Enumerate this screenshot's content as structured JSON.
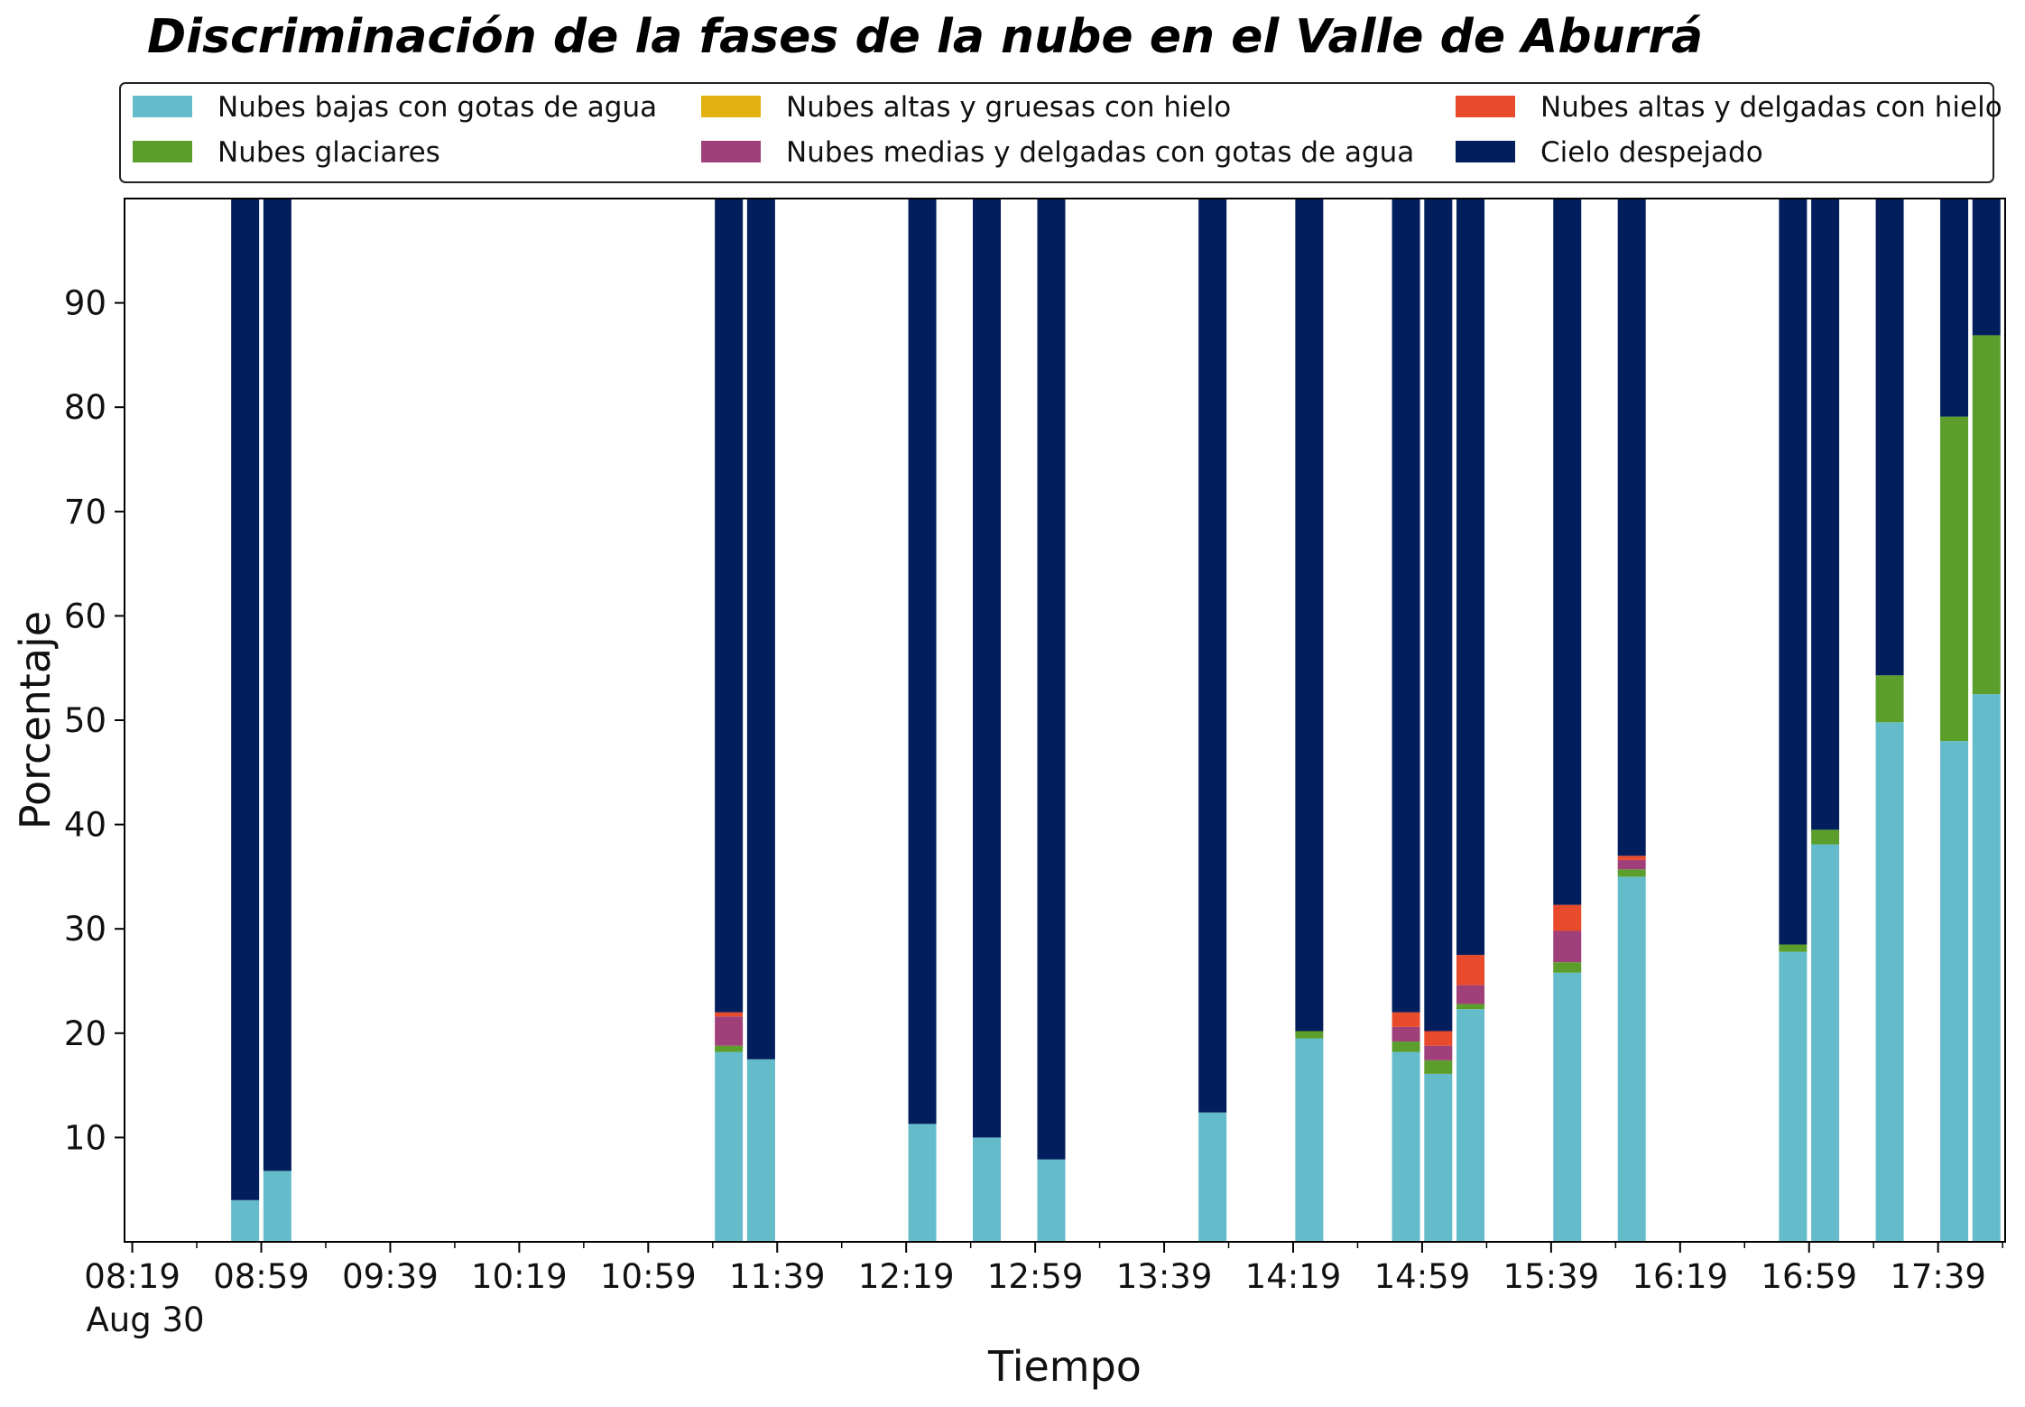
{
  "chart_data": {
    "type": "bar",
    "stacked": true,
    "title": "Discriminación de la fases de la nube en el Valle de Aburrá",
    "xlabel": "Tiempo",
    "ylabel": "Porcentaje",
    "ylim": [
      0,
      100
    ],
    "y_ticks": [
      10,
      20,
      30,
      40,
      50,
      60,
      70,
      80,
      90
    ],
    "x_range_minutes": [
      "08:19",
      "17:59"
    ],
    "x_ticks": [
      "08:19",
      "08:59",
      "09:39",
      "10:19",
      "10:59",
      "11:39",
      "12:19",
      "12:59",
      "13:39",
      "14:19",
      "14:59",
      "15:39",
      "16:19",
      "16:59",
      "17:39"
    ],
    "x_tick_sublabel": "Aug 30",
    "grid": false,
    "legend_position": "top",
    "series": [
      {
        "name": "Nubes bajas con gotas de agua",
        "color": "#64bccb"
      },
      {
        "name": "Nubes glaciares",
        "color": "#5b9e2b"
      },
      {
        "name": "Nubes altas y gruesas con hielo",
        "color": "#e2b10f"
      },
      {
        "name": "Nubes medias y delgadas con gotas de agua",
        "color": "#a0407a"
      },
      {
        "name": "Nubes altas y delgadas con hielo",
        "color": "#e84a2c"
      },
      {
        "name": "Cielo despejado",
        "color": "#021e5c"
      }
    ],
    "bars": [
      {
        "time": "08:54",
        "values": [
          4.0,
          0,
          0,
          0,
          0,
          96.0
        ]
      },
      {
        "time": "09:04",
        "values": [
          6.8,
          0,
          0,
          0,
          0,
          93.2
        ]
      },
      {
        "time": "11:24",
        "values": [
          18.2,
          0.6,
          0,
          2.8,
          0.4,
          78.0
        ]
      },
      {
        "time": "11:34",
        "values": [
          17.5,
          0,
          0,
          0,
          0,
          82.5
        ]
      },
      {
        "time": "12:24",
        "values": [
          11.3,
          0,
          0,
          0,
          0,
          88.7
        ]
      },
      {
        "time": "12:44",
        "values": [
          10.0,
          0,
          0,
          0,
          0,
          90.0
        ]
      },
      {
        "time": "13:04",
        "values": [
          7.9,
          0,
          0,
          0,
          0,
          92.1
        ]
      },
      {
        "time": "13:54",
        "values": [
          12.4,
          0,
          0,
          0,
          0,
          87.6
        ]
      },
      {
        "time": "14:24",
        "values": [
          19.5,
          0.7,
          0,
          0,
          0,
          79.8
        ]
      },
      {
        "time": "14:54",
        "values": [
          18.2,
          1.0,
          0,
          1.4,
          1.4,
          78.0
        ]
      },
      {
        "time": "15:04",
        "values": [
          16.1,
          1.3,
          0,
          1.4,
          1.4,
          79.8
        ]
      },
      {
        "time": "15:14",
        "values": [
          22.3,
          0.5,
          0,
          1.8,
          2.9,
          72.5
        ]
      },
      {
        "time": "15:44",
        "values": [
          25.8,
          1.0,
          0,
          3.0,
          2.5,
          67.7
        ]
      },
      {
        "time": "16:04",
        "values": [
          35.0,
          0.7,
          0,
          0.9,
          0.4,
          63.0
        ]
      },
      {
        "time": "16:54",
        "values": [
          27.8,
          0.7,
          0,
          0,
          0,
          71.5
        ]
      },
      {
        "time": "17:04",
        "values": [
          38.1,
          1.4,
          0,
          0,
          0,
          60.5
        ]
      },
      {
        "time": "17:24",
        "values": [
          49.8,
          4.5,
          0,
          0,
          0,
          45.7
        ]
      },
      {
        "time": "17:44",
        "values": [
          48.0,
          31.1,
          0,
          0,
          0,
          20.9
        ]
      },
      {
        "time": "17:54",
        "values": [
          52.5,
          34.4,
          0,
          0,
          0,
          13.1
        ]
      }
    ]
  }
}
